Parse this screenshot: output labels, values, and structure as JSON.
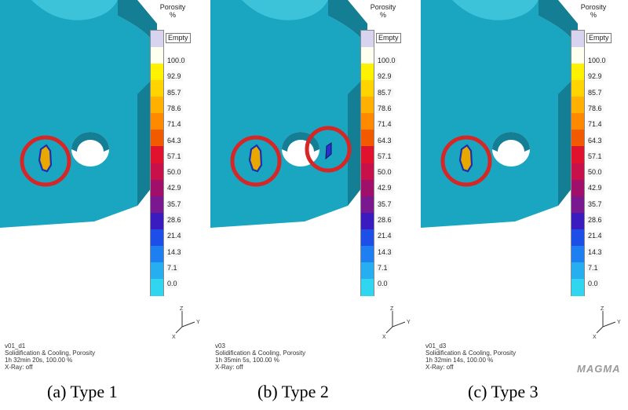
{
  "colors": {
    "part": "#1aa6c0",
    "part_dark": "#137e94",
    "part_light": "#3cc3da",
    "highlight_circle": "#d62626"
  },
  "legend": {
    "title_line1": "Porosity",
    "title_line2": "%",
    "empty_label": "Empty",
    "labels": [
      "100.0",
      "92.9",
      "85.7",
      "78.6",
      "71.4",
      "64.3",
      "57.1",
      "50.0",
      "42.9",
      "35.7",
      "28.6",
      "21.4",
      "14.3",
      "7.1",
      "0.0"
    ],
    "colors": [
      "#d8d4f0",
      "#fffff0",
      "#fff200",
      "#ffd400",
      "#ffb000",
      "#ff8a00",
      "#f25a00",
      "#e0122d",
      "#c8104a",
      "#a0106a",
      "#7a1890",
      "#3a1bc0",
      "#1e4ee8",
      "#1e7ff0",
      "#27aef0",
      "#30d6f0"
    ]
  },
  "panels": [
    {
      "run": "v01_d1",
      "result": "Solidification & Cooling, Porosity",
      "time": "1h 32min 20s, 100.00 %",
      "xray": "X-Ray: off",
      "caption": "(a)  Type  1",
      "second_defect": false
    },
    {
      "run": "v03",
      "result": "Solidification & Cooling, Porosity",
      "time": "1h 35min 5s, 100.00 %",
      "xray": "X-Ray: off",
      "caption": "(b)  Type  2",
      "second_defect": true
    },
    {
      "run": "v01_d3",
      "result": "Solidification & Cooling, Porosity",
      "time": "1h 32min 14s, 100.00 %",
      "xray": "X-Ray: off",
      "caption": "(c)  Type  3",
      "second_defect": false
    }
  ],
  "axis_labels": {
    "z": "Z",
    "y": "Y",
    "x": "X"
  },
  "logo": "MAGMA"
}
